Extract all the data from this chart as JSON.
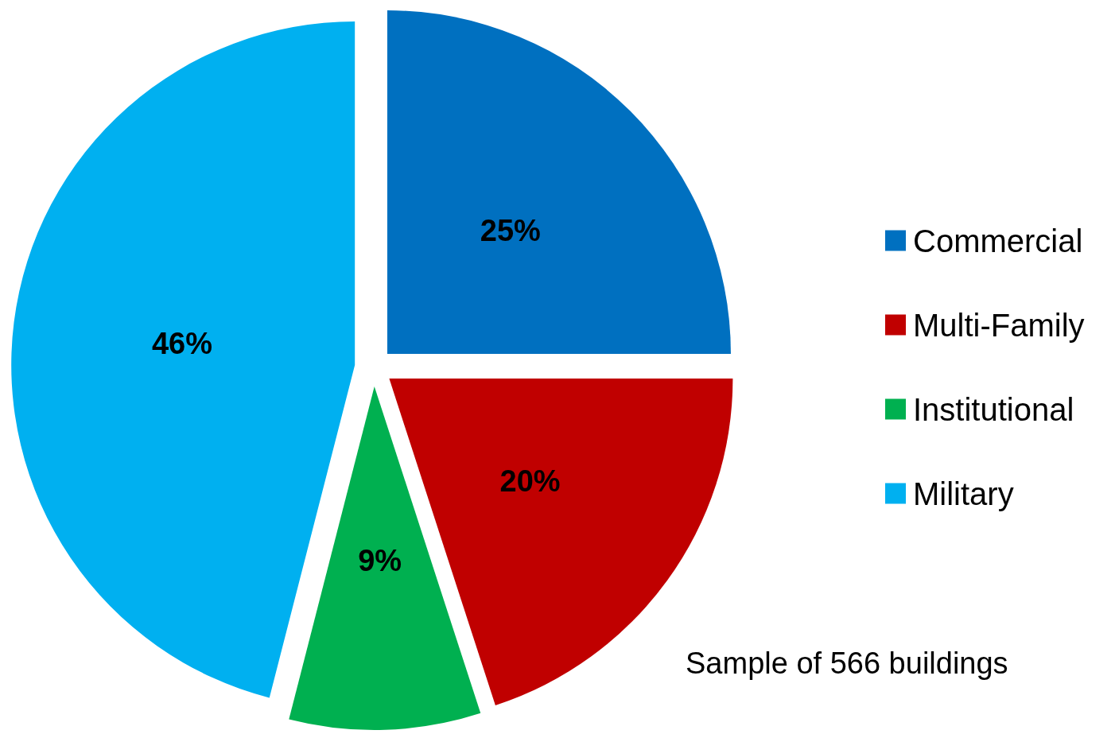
{
  "chart_data": {
    "type": "pie",
    "categories": [
      "Commercial",
      "Multi-Family",
      "Institutional",
      "Military"
    ],
    "values": [
      25,
      20,
      9,
      46
    ],
    "colors": [
      "#0070c0",
      "#c00000",
      "#00b050",
      "#00b0f0"
    ],
    "value_labels": [
      "25%",
      "20%",
      "9%",
      "46%"
    ],
    "legend": "right",
    "annotations": [
      "Sample of 566 buildings"
    ]
  }
}
